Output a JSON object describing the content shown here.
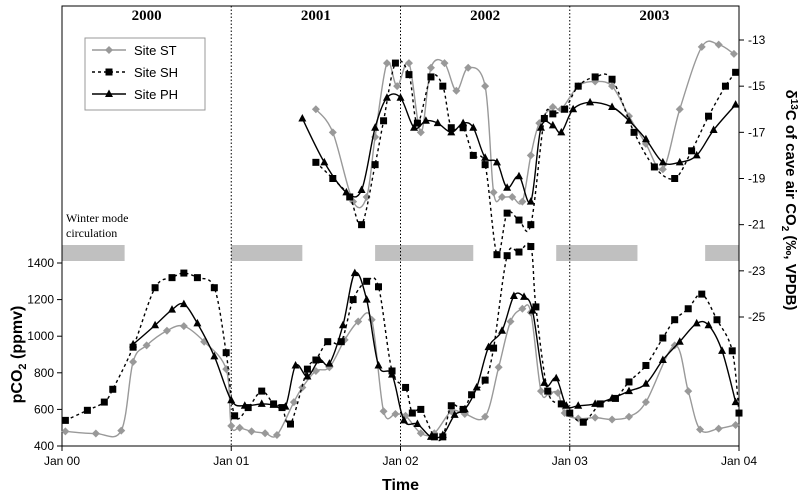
{
  "chart_data": {
    "type": "line",
    "xlabel": "Time",
    "ylabel_left": "pCO2 (ppmv)",
    "ylabel_right": "δ13C of cave air CO2 (‰, VPDB)",
    "x_ticks": [
      "Jan 00",
      "Jan 01",
      "Jan 02",
      "Jan 03",
      "Jan 04"
    ],
    "xlim": [
      0,
      4
    ],
    "years": [
      "2000",
      "2001",
      "2002",
      "2003"
    ],
    "y_left": {
      "range": [
        400,
        1500
      ],
      "ticks": [
        400,
        600,
        800,
        1000,
        1200,
        1400
      ]
    },
    "y_right": {
      "range": [
        -27.5,
        -11.5
      ],
      "ticks": [
        -13,
        -15,
        -17,
        -19,
        -21,
        -23,
        -25
      ]
    },
    "annotation": "Winter mode\ncirculation",
    "winter_bars": [
      [
        0,
        0.37
      ],
      [
        -0.02,
        0.42
      ],
      [
        0.85,
        1.42
      ],
      [
        1.9,
        2.39
      ],
      [
        2.82,
        3.24
      ]
    ],
    "legend": {
      "position": "top-left",
      "entries": [
        {
          "name": "Site ST",
          "series": "ST"
        },
        {
          "name": "Site SH",
          "series": "SH"
        },
        {
          "name": "Site PH",
          "series": "PH"
        }
      ]
    },
    "series_style": {
      "ST": {
        "color": "#999999",
        "dash": "",
        "marker": "diamond"
      },
      "SH": {
        "color": "#000000",
        "dash": "3,3",
        "marker": "square"
      },
      "PH": {
        "color": "#000000",
        "dash": "",
        "marker": "triangle"
      }
    },
    "pco2_series": [
      {
        "name": "Site ST",
        "key": "ST",
        "points": [
          [
            0.02,
            480
          ],
          [
            0.2,
            468
          ],
          [
            0.35,
            484
          ],
          [
            0.42,
            860
          ],
          [
            0.5,
            950
          ],
          [
            0.62,
            1030
          ],
          [
            0.72,
            1055
          ],
          [
            0.84,
            970
          ],
          [
            0.97,
            820
          ],
          [
            1.0,
            510
          ],
          [
            1.05,
            500
          ],
          [
            1.12,
            480
          ],
          [
            1.2,
            470
          ],
          [
            1.27,
            460
          ],
          [
            1.37,
            640
          ],
          [
            1.42,
            720
          ],
          [
            1.5,
            810
          ],
          [
            1.58,
            830
          ],
          [
            1.67,
            980
          ],
          [
            1.75,
            1080
          ],
          [
            1.83,
            1090
          ],
          [
            1.9,
            590
          ],
          [
            1.97,
            575
          ],
          [
            2.03,
            565
          ],
          [
            2.12,
            470
          ],
          [
            2.2,
            470
          ],
          [
            2.3,
            590
          ],
          [
            2.38,
            575
          ],
          [
            2.5,
            560
          ],
          [
            2.58,
            830
          ],
          [
            2.65,
            1080
          ],
          [
            2.72,
            1150
          ],
          [
            2.77,
            1130
          ],
          [
            2.83,
            700
          ],
          [
            2.88,
            690
          ],
          [
            2.93,
            690
          ],
          [
            2.97,
            580
          ],
          [
            3.05,
            550
          ],
          [
            3.15,
            555
          ],
          [
            3.25,
            545
          ],
          [
            3.35,
            560
          ],
          [
            3.45,
            640
          ],
          [
            3.62,
            950
          ],
          [
            3.7,
            700
          ],
          [
            3.77,
            490
          ],
          [
            3.88,
            495
          ],
          [
            3.98,
            515
          ]
        ]
      },
      {
        "name": "Site SH",
        "key": "SH",
        "points": [
          [
            0.02,
            540
          ],
          [
            0.15,
            595
          ],
          [
            0.25,
            640
          ],
          [
            0.3,
            710
          ],
          [
            0.42,
            940
          ],
          [
            0.55,
            1265
          ],
          [
            0.65,
            1320
          ],
          [
            0.72,
            1345
          ],
          [
            0.8,
            1320
          ],
          [
            0.9,
            1265
          ],
          [
            0.97,
            910
          ],
          [
            1.02,
            565
          ],
          [
            1.1,
            610
          ],
          [
            1.18,
            700
          ],
          [
            1.25,
            630
          ],
          [
            1.3,
            610
          ],
          [
            1.35,
            520
          ],
          [
            1.45,
            820
          ],
          [
            1.5,
            870
          ],
          [
            1.57,
            970
          ],
          [
            1.65,
            970
          ],
          [
            1.72,
            1200
          ],
          [
            1.8,
            1300
          ],
          [
            1.87,
            1270
          ],
          [
            1.95,
            810
          ],
          [
            2.03,
            720
          ],
          [
            2.07,
            580
          ],
          [
            2.12,
            600
          ],
          [
            2.2,
            450
          ],
          [
            2.25,
            450
          ],
          [
            2.3,
            620
          ],
          [
            2.37,
            600
          ],
          [
            2.42,
            680
          ],
          [
            2.5,
            760
          ],
          [
            2.55,
            935
          ],
          [
            2.63,
            1440
          ],
          [
            2.7,
            1460
          ],
          [
            2.77,
            1490
          ],
          [
            2.8,
            1160
          ],
          [
            2.87,
            700
          ],
          [
            2.95,
            630
          ],
          [
            3.0,
            580
          ],
          [
            3.08,
            530
          ],
          [
            3.18,
            630
          ],
          [
            3.27,
            660
          ],
          [
            3.35,
            750
          ],
          [
            3.45,
            840
          ],
          [
            3.55,
            990
          ],
          [
            3.62,
            1090
          ],
          [
            3.7,
            1150
          ],
          [
            3.78,
            1230
          ],
          [
            3.87,
            1090
          ],
          [
            3.96,
            920
          ],
          [
            4.0,
            580
          ]
        ]
      },
      {
        "name": "Site PH",
        "key": "PH",
        "points": [
          [
            0.42,
            955
          ],
          [
            0.55,
            1060
          ],
          [
            0.65,
            1145
          ],
          [
            0.72,
            1175
          ],
          [
            0.8,
            1070
          ],
          [
            0.9,
            890
          ],
          [
            1.0,
            650
          ],
          [
            1.08,
            620
          ],
          [
            1.18,
            630
          ],
          [
            1.25,
            625
          ],
          [
            1.32,
            615
          ],
          [
            1.38,
            840
          ],
          [
            1.45,
            780
          ],
          [
            1.52,
            870
          ],
          [
            1.58,
            850
          ],
          [
            1.66,
            1060
          ],
          [
            1.73,
            1345
          ],
          [
            1.8,
            1200
          ],
          [
            1.87,
            840
          ],
          [
            1.95,
            790
          ],
          [
            2.02,
            540
          ],
          [
            2.1,
            520
          ],
          [
            2.18,
            450
          ],
          [
            2.25,
            460
          ],
          [
            2.32,
            570
          ],
          [
            2.38,
            600
          ],
          [
            2.45,
            720
          ],
          [
            2.52,
            940
          ],
          [
            2.6,
            1030
          ],
          [
            2.67,
            1220
          ],
          [
            2.73,
            1215
          ],
          [
            2.78,
            1140
          ],
          [
            2.85,
            745
          ],
          [
            2.92,
            770
          ],
          [
            2.98,
            620
          ],
          [
            3.05,
            620
          ],
          [
            3.15,
            630
          ],
          [
            3.25,
            660
          ],
          [
            3.35,
            700
          ],
          [
            3.45,
            740
          ],
          [
            3.55,
            870
          ],
          [
            3.65,
            970
          ],
          [
            3.75,
            1070
          ],
          [
            3.82,
            1060
          ],
          [
            3.9,
            920
          ],
          [
            3.98,
            640
          ]
        ]
      }
    ],
    "d13c_series": [
      {
        "name": "Site ST",
        "key": "ST",
        "points": [
          [
            1.5,
            -16.0
          ],
          [
            1.6,
            -17.0
          ],
          [
            1.72,
            -20.0
          ],
          [
            1.8,
            -19.8
          ],
          [
            1.85,
            -17.2
          ],
          [
            1.92,
            -14.0
          ],
          [
            1.98,
            -15.0
          ],
          [
            2.05,
            -14.0
          ],
          [
            2.12,
            -17.0
          ],
          [
            2.18,
            -14.2
          ],
          [
            2.26,
            -14.0
          ],
          [
            2.33,
            -15.2
          ],
          [
            2.4,
            -14.2
          ],
          [
            2.5,
            -15.0
          ],
          [
            2.55,
            -19.6
          ],
          [
            2.6,
            -19.8
          ],
          [
            2.66,
            -19.8
          ],
          [
            2.72,
            -20.0
          ],
          [
            2.77,
            -18.0
          ],
          [
            2.82,
            -16.6
          ],
          [
            2.9,
            -15.9
          ],
          [
            2.95,
            -16.0
          ],
          [
            3.05,
            -15.0
          ],
          [
            3.15,
            -14.8
          ],
          [
            3.25,
            -15.0
          ],
          [
            3.35,
            -16.3
          ],
          [
            3.45,
            -17.5
          ],
          [
            3.55,
            -18.6
          ],
          [
            3.65,
            -16.0
          ],
          [
            3.78,
            -13.3
          ],
          [
            3.88,
            -13.2
          ],
          [
            3.97,
            -13.6
          ]
        ]
      },
      {
        "name": "Site SH",
        "key": "SH",
        "points": [
          [
            1.5,
            -18.3
          ],
          [
            1.6,
            -19.0
          ],
          [
            1.7,
            -19.8
          ],
          [
            1.77,
            -21.0
          ],
          [
            1.85,
            -18.4
          ],
          [
            1.9,
            -16.5
          ],
          [
            1.97,
            -14.0
          ],
          [
            2.05,
            -14.5
          ],
          [
            2.1,
            -16.6
          ],
          [
            2.18,
            -14.6
          ],
          [
            2.25,
            -15.0
          ],
          [
            2.3,
            -16.8
          ],
          [
            2.37,
            -16.8
          ],
          [
            2.43,
            -18.0
          ],
          [
            2.5,
            -18.4
          ],
          [
            2.57,
            -22.3
          ],
          [
            2.63,
            -20.5
          ],
          [
            2.7,
            -20.8
          ],
          [
            2.77,
            -21.0
          ],
          [
            2.85,
            -16.4
          ],
          [
            2.9,
            -16.2
          ],
          [
            2.97,
            -16.0
          ],
          [
            3.05,
            -15.0
          ],
          [
            3.15,
            -14.6
          ],
          [
            3.25,
            -14.7
          ],
          [
            3.38,
            -17.0
          ],
          [
            3.5,
            -18.5
          ],
          [
            3.62,
            -19.0
          ],
          [
            3.72,
            -17.8
          ],
          [
            3.82,
            -16.3
          ],
          [
            3.92,
            -15.0
          ],
          [
            3.98,
            -14.4
          ]
        ]
      },
      {
        "name": "Site PH",
        "key": "PH",
        "points": [
          [
            1.42,
            -16.4
          ],
          [
            1.55,
            -18.3
          ],
          [
            1.68,
            -19.6
          ],
          [
            1.77,
            -19.5
          ],
          [
            1.85,
            -16.8
          ],
          [
            1.92,
            -15.5
          ],
          [
            2.0,
            -15.5
          ],
          [
            2.08,
            -16.8
          ],
          [
            2.15,
            -16.5
          ],
          [
            2.22,
            -16.6
          ],
          [
            2.3,
            -17.0
          ],
          [
            2.37,
            -16.6
          ],
          [
            2.43,
            -16.8
          ],
          [
            2.5,
            -18.1
          ],
          [
            2.57,
            -18.3
          ],
          [
            2.63,
            -19.4
          ],
          [
            2.7,
            -18.9
          ],
          [
            2.77,
            -20.0
          ],
          [
            2.83,
            -16.8
          ],
          [
            2.9,
            -16.7
          ],
          [
            2.95,
            -17.0
          ],
          [
            3.02,
            -16.0
          ],
          [
            3.12,
            -15.7
          ],
          [
            3.25,
            -15.9
          ],
          [
            3.35,
            -16.5
          ],
          [
            3.45,
            -17.3
          ],
          [
            3.55,
            -18.3
          ],
          [
            3.65,
            -18.3
          ],
          [
            3.75,
            -18.0
          ],
          [
            3.85,
            -16.9
          ],
          [
            3.98,
            -15.8
          ]
        ]
      }
    ]
  }
}
